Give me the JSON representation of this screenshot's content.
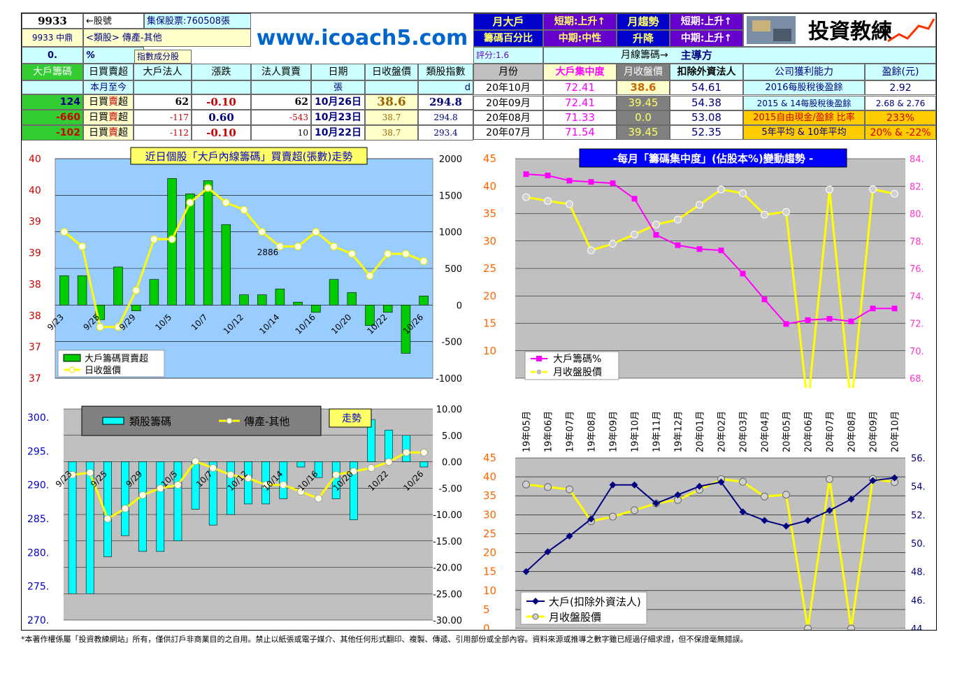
{
  "info": {
    "code": "9933",
    "code_note": "←股號",
    "pledge": "集保股票:760508張",
    "name": "9933 中鼎",
    "industry": "<類股> 傳產-其他",
    "zero": "0.",
    "pct": "%",
    "index_member": "指數成分股",
    "website": "www.icoach5.com",
    "big_label1": "月大戶",
    "big_label2": "籌碼百分比",
    "short_up": "短期:上升↑",
    "mid_neutral": "中期:中性",
    "trend_label1": "月趨勢",
    "trend_label2": "升降",
    "short_up2": "短期:上升↑",
    "mid_up": "中期:上升↑",
    "logo_text": "投資教練",
    "score": "評分:1.6",
    "monthly_lead": "月線籌碼→",
    "lead_force": "主導方"
  },
  "daily_table": {
    "headers": [
      "大戶籌碼",
      "日買賣超",
      "大戶法人",
      "漲跌",
      "法人買賣",
      "日期",
      "日收盤價",
      "類股指數"
    ],
    "month_row": {
      "label": "本月至今",
      "unit": "張",
      "d": "d"
    },
    "rows": [
      {
        "big": "124",
        "type_a": "日買",
        "type_b": "賣",
        "type_c": "超",
        "holder": "62",
        "change": "-0.10",
        "inst": "62",
        "date": "10月26日",
        "close": "38.6",
        "index": "294.8"
      },
      {
        "big": "-660",
        "type_a": "日買",
        "type_b": "賣",
        "type_c": "超",
        "holder": "-117",
        "change": "0.60",
        "inst": "-543",
        "date": "10月23日",
        "close": "38.7",
        "index": "294.8"
      },
      {
        "big": "-102",
        "type_a": "日買",
        "type_b": "賣",
        "type_c": "超",
        "holder": "-112",
        "change": "-0.10",
        "inst": "10",
        "date": "10月22日",
        "close": "38.7",
        "index": "293.4"
      }
    ]
  },
  "monthly_table": {
    "headers": [
      "月份",
      "大戶集中度",
      "月收盤價",
      "扣除外資法人",
      "公司獲利能力",
      "盈餘(元)"
    ],
    "rows": [
      {
        "month": "20年10月",
        "conc": "72.41",
        "close": "38.6",
        "ex": "54.61",
        "desc": "2016每股稅後盈餘",
        "val": "2.92"
      },
      {
        "month": "20年09月",
        "conc": "72.41",
        "close": "39.45",
        "ex": "54.38",
        "desc": "2015 & 14每股稅後盈餘",
        "val": "2.68 & 2.76"
      },
      {
        "month": "20年08月",
        "conc": "71.33",
        "close": "0.0",
        "ex": "53.08",
        "desc": "2015自由現金/盈餘 比率",
        "val": "233%"
      },
      {
        "month": "20年07月",
        "conc": "71.54",
        "close": "39.45",
        "ex": "52.35",
        "desc": "5年平均 & 10年平均",
        "val": "20% & -22%"
      }
    ]
  },
  "chart_data": [
    {
      "type": "bar",
      "title": "近日個股「大戶內線籌碼」買賣超(張數)走勢",
      "categories": [
        "9/23",
        "9/24",
        "9/25",
        "9/28",
        "9/29",
        "9/30",
        "10/5",
        "10/6",
        "10/7",
        "10/8",
        "10/12",
        "10/13",
        "10/14",
        "10/15",
        "10/16",
        "10/19",
        "10/20",
        "10/21",
        "10/22",
        "10/23",
        "10/26"
      ],
      "x_tick_labels": [
        "9/23",
        "9/25",
        "9/29",
        "10/5",
        "10/7",
        "10/12",
        "10/14",
        "10/16",
        "10/20",
        "10/22",
        "10/26"
      ],
      "series": [
        {
          "name": "大戶籌碼買賣超",
          "type": "bar",
          "axis": "right",
          "values": [
            400,
            400,
            -200,
            520,
            -80,
            350,
            1730,
            1520,
            1700,
            1100,
            140,
            140,
            220,
            40,
            -100,
            350,
            170,
            -280,
            -100,
            -660,
            124
          ]
        },
        {
          "name": "日收盤價",
          "type": "line",
          "axis": "left",
          "values": [
            39.0,
            38.8,
            37.7,
            37.7,
            38.2,
            38.9,
            38.9,
            39.4,
            39.6,
            39.4,
            39.3,
            39.0,
            38.8,
            38.8,
            39.0,
            38.8,
            38.7,
            38.4,
            38.7,
            38.7,
            38.6
          ]
        }
      ],
      "annotation": "2886",
      "left_ticks": [
        "40",
        "40",
        "39",
        "39",
        "38",
        "38",
        "37",
        "37"
      ],
      "right_ticks": [
        "2000",
        "1500",
        "1000",
        "500",
        "0",
        "-500",
        "-1000"
      ],
      "ylim_right": [
        -1000,
        2000
      ],
      "ylim_left": [
        37.0,
        40.0
      ]
    },
    {
      "type": "line",
      "title": "-每月「籌碼集中度」(佔股本%)變動趨勢 -",
      "categories": [
        "19年05月",
        "19年06月",
        "19年07月",
        "19年08月",
        "19年09月",
        "19年10月",
        "19年11月",
        "19年12月",
        "20年01月",
        "20年02月",
        "20年03月",
        "20年04月",
        "20年05月",
        "20年06月",
        "20年07月",
        "20年08月",
        "20年09月",
        "20年10月"
      ],
      "series": [
        {
          "name": "大戶籌碼%",
          "axis": "right",
          "values": [
            82.8,
            82.7,
            82.3,
            82.2,
            82.1,
            80.9,
            78.1,
            77.3,
            77.0,
            76.9,
            75.1,
            73.1,
            71.2,
            71.5,
            71.6,
            71.4,
            72.4,
            72.4
          ]
        },
        {
          "name": "月收盤股價",
          "axis": "left",
          "values": [
            38.0,
            37.3,
            36.7,
            28.3,
            29.5,
            31.2,
            33.0,
            33.9,
            36.6,
            39.4,
            38.7,
            34.8,
            35.3,
            0.0,
            39.4,
            0.0,
            39.45,
            38.6
          ]
        }
      ],
      "left_ticks": [
        "45",
        "40",
        "35",
        "30",
        "25",
        "20",
        "15",
        "10"
      ],
      "right_ticks": [
        "84.",
        "82.",
        "80.",
        "78.",
        "76.",
        "74.",
        "72.",
        "70.",
        "68."
      ],
      "ylim_left": [
        10,
        45
      ],
      "ylim_right": [
        67.0,
        84.0
      ]
    },
    {
      "type": "bar",
      "title": "走勢",
      "categories": [
        "9/23",
        "9/24",
        "9/25",
        "9/28",
        "9/29",
        "9/30",
        "10/5",
        "10/6",
        "10/7",
        "10/8",
        "10/12",
        "10/13",
        "10/14",
        "10/15",
        "10/16",
        "10/19",
        "10/20",
        "10/21",
        "10/22",
        "10/23",
        "10/26"
      ],
      "x_tick_labels": [
        "9/23",
        "9/25",
        "9/29",
        "10/5",
        "10/7",
        "10/12",
        "10/14",
        "10/16",
        "10/20",
        "10/22",
        "10/26"
      ],
      "series": [
        {
          "name": "類股籌碼",
          "type": "bar",
          "axis": "right",
          "values": [
            -25,
            -25,
            -18,
            -14,
            -17,
            -17,
            -15,
            -9,
            -12,
            -10,
            -8,
            -8,
            -7,
            -1,
            -3,
            -7,
            -11,
            8,
            6,
            5,
            -1
          ]
        },
        {
          "name": "傳產-其他",
          "type": "line",
          "axis": "left",
          "values": [
            291.5,
            291.8,
            285.0,
            286.5,
            288.5,
            289.5,
            290.0,
            293.5,
            292.5,
            291.5,
            291.0,
            290.0,
            290.0,
            289.0,
            288.0,
            291.5,
            292.0,
            292.5,
            293.4,
            294.8,
            294.8
          ]
        }
      ],
      "left_ticks": [
        "300.",
        "295.",
        "290.",
        "285.",
        "280.",
        "275.",
        "270."
      ],
      "right_ticks": [
        "10.00",
        "5.00",
        "0.00",
        "-5.00",
        "-10.00",
        "-15.00",
        "-20.00",
        "-25.00",
        "-30.00"
      ],
      "ylim_left": [
        270,
        300
      ],
      "ylim_right": [
        -30,
        10
      ]
    },
    {
      "type": "line",
      "categories": [
        "19年05月",
        "19年06月",
        "19年07月",
        "19年08月",
        "19年09月",
        "19年10月",
        "19年11月",
        "19年12月",
        "20年01月",
        "20年02月",
        "20年03月",
        "20年04月",
        "20年05月",
        "20年06月",
        "20年07月",
        "20年08月",
        "20年09月",
        "20年10月"
      ],
      "series": [
        {
          "name": "大戶(扣除外資法人)",
          "axis": "right",
          "values": [
            48.0,
            49.4,
            50.5,
            51.7,
            54.1,
            54.1,
            52.8,
            53.4,
            54.0,
            54.3,
            52.2,
            51.6,
            51.2,
            51.6,
            52.3,
            53.1,
            54.4,
            54.6
          ]
        },
        {
          "name": "月收盤股價",
          "axis": "left",
          "values": [
            38.0,
            37.3,
            36.7,
            28.3,
            29.5,
            31.2,
            33.0,
            33.9,
            36.6,
            39.4,
            38.7,
            34.8,
            35.3,
            0.0,
            39.4,
            0.0,
            39.45,
            38.6
          ]
        }
      ],
      "left_ticks": [
        "45",
        "40",
        "35",
        "30",
        "25",
        "20",
        "15",
        "10",
        "5",
        "0"
      ],
      "right_ticks": [
        "56.",
        "54.",
        "52.",
        "50.",
        "48.",
        "46.",
        "44."
      ],
      "ylim_left": [
        0,
        45
      ],
      "ylim_right": [
        44,
        56
      ]
    }
  ],
  "colors": {
    "bar_green": "#00cc00",
    "line_yellow": "#ffff00",
    "magenta": "#ff00ff",
    "cyan": "#00ffff",
    "navy": "#000080",
    "sky": "#99ccff"
  },
  "footer": "*本著作權係屬「投資教練網站」所有，僅供訂戶非商業目的之自用。禁止以紙張或電子媒介、其他任何形式翻印、複製、傳遞、引用部份或全部內容。資料來源或推導之數字雖已經過仔細求證，但不保證毫無錯誤。"
}
